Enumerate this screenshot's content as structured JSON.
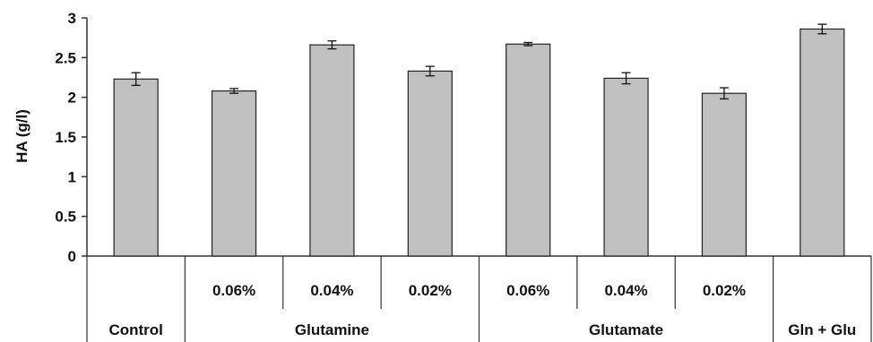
{
  "chart_data": {
    "type": "bar",
    "ylabel": "HA (g/l)",
    "ylim": [
      0,
      3
    ],
    "yticks": [
      "0",
      "0.5",
      "1",
      "1.5",
      "2",
      "2.5",
      "3"
    ],
    "categories": [
      "Control",
      "0.06%",
      "0.04%",
      "0.02%",
      "0.06%",
      "0.04%",
      "0.02%",
      "Gln + Glu"
    ],
    "groups": [
      {
        "label": "Control",
        "span": 1
      },
      {
        "label": "Glutamine",
        "span": 3
      },
      {
        "label": "Glutamate",
        "span": 3
      },
      {
        "label": "Gln + Glu",
        "span": 1
      }
    ],
    "values": [
      2.23,
      2.08,
      2.66,
      2.33,
      2.67,
      2.24,
      2.05,
      2.86
    ],
    "errors": [
      0.08,
      0.03,
      0.05,
      0.06,
      0.02,
      0.07,
      0.07,
      0.06
    ],
    "bar_color": "#c0c0c0",
    "grid": false,
    "legend": "none"
  }
}
